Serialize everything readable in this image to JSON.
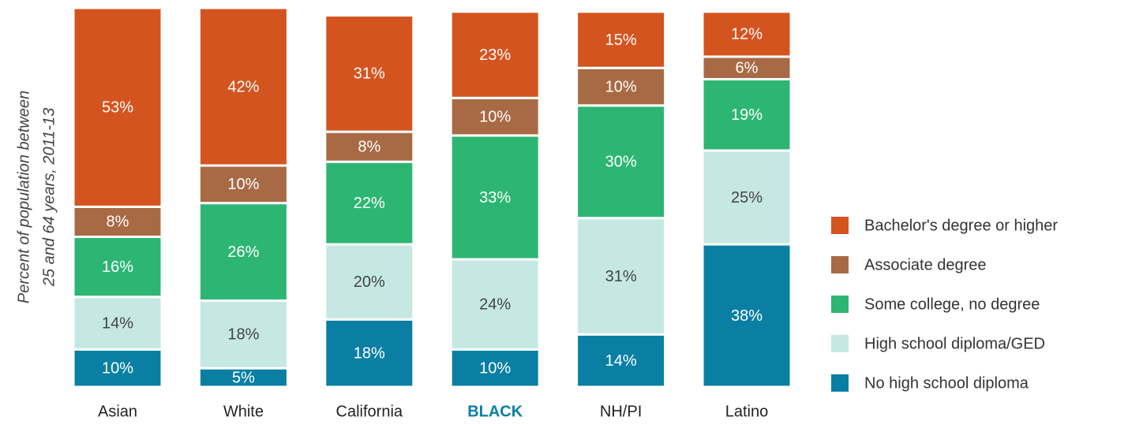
{
  "chart_data": {
    "type": "stacked-bar",
    "ylabel": [
      "Percent of population between",
      "25 and 64 years, 2011-13"
    ],
    "categories": [
      "Asian",
      "White",
      "California",
      "BLACK",
      "NH/PI",
      "Latino"
    ],
    "highlight_category": 3,
    "highlight_color": "#0a7fa3",
    "ylim": [
      0,
      101
    ],
    "series": [
      {
        "name": "No high school diploma",
        "color": "#0a7fa3",
        "label_color": "#ffffff",
        "values": [
          10,
          5,
          18,
          10,
          14,
          38
        ],
        "value_labels": [
          "10%",
          "5%",
          "18%",
          "10%",
          "14%",
          "38%"
        ]
      },
      {
        "name": "High school diploma/GED",
        "color": "#c6e8e2",
        "label_color": "#444444",
        "values": [
          14,
          18,
          20,
          24,
          31,
          25
        ],
        "value_labels": [
          "14%",
          "18%",
          "20%",
          "24%",
          "31%",
          "25%"
        ]
      },
      {
        "name": "Some college, no degree",
        "color": "#2db673",
        "label_color": "#ffffff",
        "values": [
          16,
          26,
          22,
          33,
          30,
          19
        ],
        "value_labels": [
          "16%",
          "26%",
          "22%",
          "33%",
          "30%",
          "19%"
        ]
      },
      {
        "name": "Associate degree",
        "color": "#a86a45",
        "label_color": "#ffffff",
        "values": [
          8,
          10,
          8,
          10,
          10,
          6
        ],
        "value_labels": [
          "8%",
          "10%",
          "8%",
          "10%",
          "10%",
          "6%"
        ]
      },
      {
        "name": "Bachelor's degree or higher",
        "color": "#d4541f",
        "label_color": "#ffffff",
        "values": [
          53,
          42,
          31,
          23,
          15,
          12
        ],
        "value_labels": [
          "53%",
          "42%",
          "31%",
          "23%",
          "15%",
          "12%"
        ]
      }
    ]
  }
}
